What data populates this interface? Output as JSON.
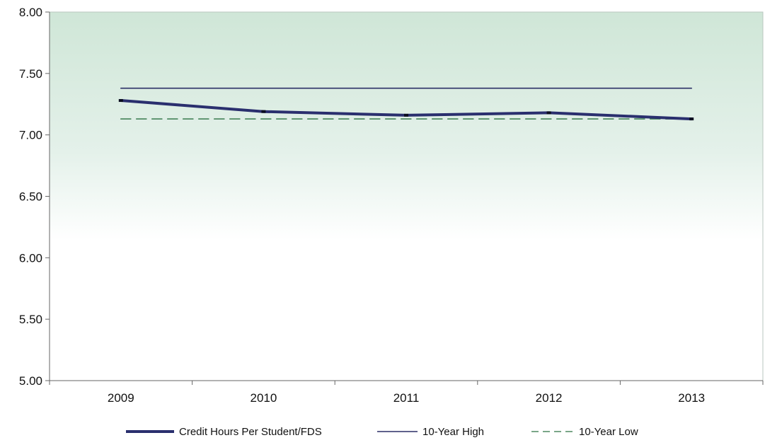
{
  "colors": {
    "series_main": "#2a2f6e",
    "high_line": "#2b2f66",
    "low_line": "#4f8a62",
    "plot_bg_top": "#cfe6d7",
    "plot_bg_bottom": "#ffffff",
    "axis": "#666666"
  },
  "chart_data": {
    "type": "line",
    "x": [
      "2009",
      "2010",
      "2011",
      "2012",
      "2013"
    ],
    "ylim": [
      5.0,
      8.0
    ],
    "yticks": [
      "8.00",
      "7.50",
      "7.00",
      "6.50",
      "6.00",
      "5.50",
      "5.00"
    ],
    "ytick_values": [
      8.0,
      7.5,
      7.0,
      6.5,
      6.0,
      5.5,
      5.0
    ],
    "grid": false,
    "legend_position": "bottom",
    "series": [
      {
        "name": "Credit Hours Per Student/FDS",
        "values": [
          7.28,
          7.19,
          7.16,
          7.18,
          7.13
        ],
        "style": "thick-solid"
      },
      {
        "name": "10-Year High",
        "values": [
          7.38,
          7.38,
          7.38,
          7.38,
          7.38
        ],
        "style": "thin-solid"
      },
      {
        "name": "10-Year Low",
        "values": [
          7.13,
          7.13,
          7.13,
          7.13,
          7.13
        ],
        "style": "dashed"
      }
    ]
  }
}
